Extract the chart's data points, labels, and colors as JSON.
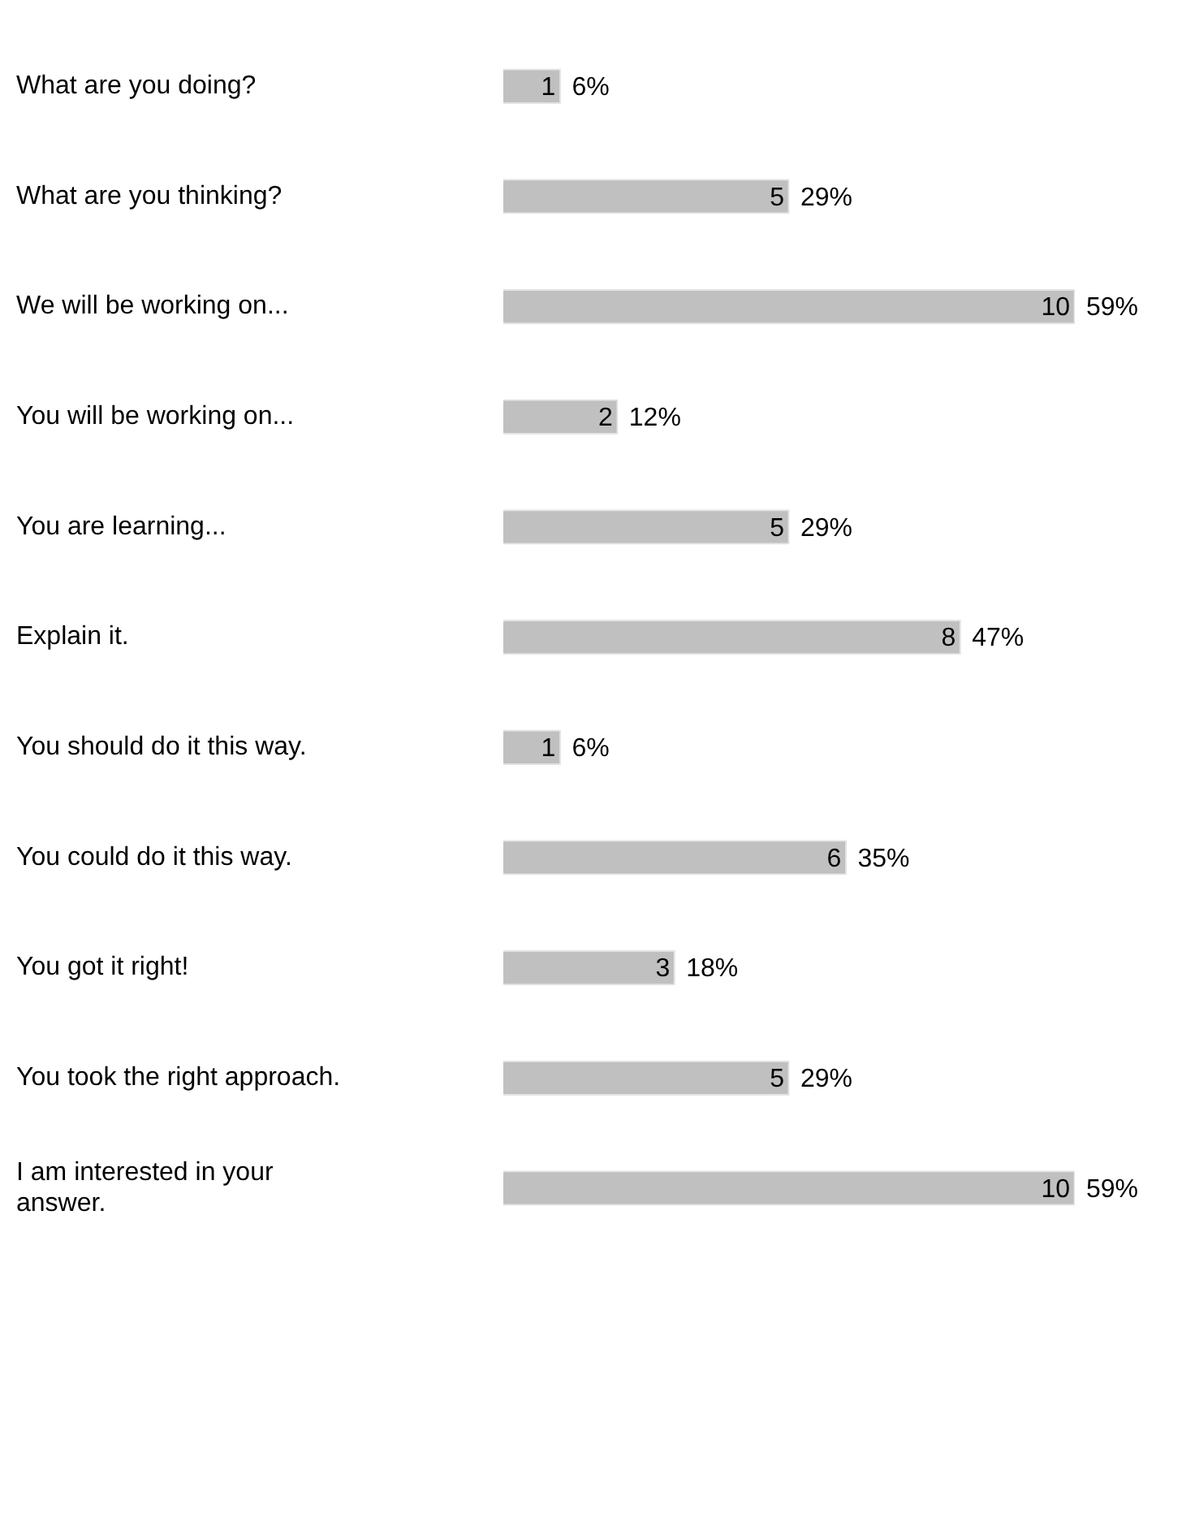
{
  "chart_data": {
    "type": "bar",
    "orientation": "horizontal",
    "categories": [
      "What are you doing?",
      "What are you thinking?",
      "We will be working on...",
      "You will be working on...",
      "You are learning...",
      "Explain it.",
      "You should do it this way.",
      "You could do it this way.",
      "You got it right!",
      "You took the right approach.",
      "I am interested in your answer."
    ],
    "values": [
      1,
      5,
      10,
      2,
      5,
      8,
      1,
      6,
      3,
      5,
      10
    ],
    "data_labels": true,
    "annotations": [
      {
        "text": "6%",
        "x": 1,
        "y": "What are you doing?"
      },
      {
        "text": "29%",
        "x": 5,
        "y": "What are you thinking?"
      },
      {
        "text": "59%",
        "x": 10,
        "y": "We will be working on..."
      },
      {
        "text": "12%",
        "x": 2,
        "y": "You will be working on..."
      },
      {
        "text": "29%",
        "x": 5,
        "y": "You are learning..."
      },
      {
        "text": "47%",
        "x": 8,
        "y": "Explain it."
      },
      {
        "text": "6%",
        "x": 1,
        "y": "You should do it this way."
      },
      {
        "text": "35%",
        "x": 6,
        "y": "You could do it this way."
      },
      {
        "text": "18%",
        "x": 3,
        "y": "You got it right!"
      },
      {
        "text": "29%",
        "x": 5,
        "y": "You took the right approach."
      },
      {
        "text": "59%",
        "x": 10,
        "y": "I am interested in your answer."
      }
    ],
    "color": "#c0c0c0",
    "grid": false,
    "legend": false
  }
}
